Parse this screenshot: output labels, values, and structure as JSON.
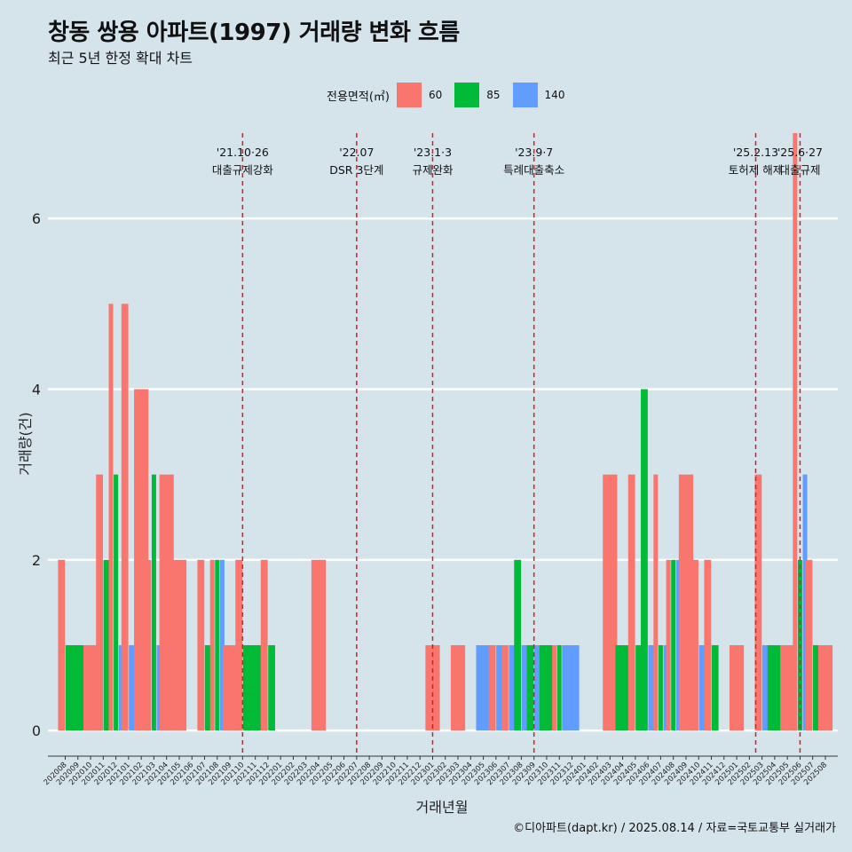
{
  "title": "창동 쌍용 아파트(1997) 거래량 변화 흐름",
  "subtitle": "최근 5년 한정 확대 차트",
  "caption": "©디아파트(dapt.kr) / 2025.08.14 / 자료=국토교통부 실거래가",
  "chart_data": {
    "type": "bar",
    "xlabel": "거래년월",
    "ylabel": "거래량(건)",
    "ylim": [
      -0.3,
      7.0
    ],
    "yticks": [
      0,
      2,
      4,
      6
    ],
    "grid": true,
    "legend": {
      "title": "전용면적(㎡)",
      "placement": "top",
      "entries": [
        {
          "label": "60",
          "color": "#f8766d"
        },
        {
          "label": "85",
          "color": "#00ba38"
        },
        {
          "label": "140",
          "color": "#619cff"
        }
      ]
    },
    "categories": [
      "202008",
      "202009",
      "202010",
      "202011",
      "202012",
      "202101",
      "202102",
      "202103",
      "202104",
      "202105",
      "202106",
      "202107",
      "202108",
      "202109",
      "202110",
      "202111",
      "202112",
      "202201",
      "202202",
      "202203",
      "202204",
      "202205",
      "202206",
      "202207",
      "202208",
      "202209",
      "202210",
      "202211",
      "202212",
      "202301",
      "202302",
      "202303",
      "202304",
      "202305",
      "202306",
      "202307",
      "202308",
      "202309",
      "202310",
      "202311",
      "202312",
      "202401",
      "202402",
      "202403",
      "202404",
      "202405",
      "202406",
      "202407",
      "202408",
      "202409",
      "202410",
      "202411",
      "202412",
      "202501",
      "202502",
      "202503",
      "202504",
      "202505",
      "202506",
      "202507",
      "202508"
    ],
    "series": [
      {
        "name": "60",
        "color": "#f8766d",
        "values": [
          2,
          0,
          1,
          3,
          5,
          5,
          4,
          2,
          3,
          2,
          0,
          2,
          2,
          1,
          2,
          0,
          2,
          0,
          0,
          0,
          2,
          0,
          0,
          0,
          0,
          0,
          0,
          0,
          0,
          1,
          0,
          1,
          0,
          0,
          1,
          1,
          0,
          0,
          0,
          1,
          0,
          0,
          0,
          3,
          0,
          3,
          0,
          3,
          2,
          3,
          2,
          2,
          0,
          1,
          0,
          3,
          0,
          1,
          7,
          2,
          1
        ]
      },
      {
        "name": "85",
        "color": "#00ba38",
        "values": [
          1,
          1,
          0,
          2,
          3,
          0,
          0,
          3,
          0,
          0,
          0,
          1,
          2,
          0,
          1,
          1,
          1,
          0,
          0,
          0,
          0,
          0,
          0,
          0,
          0,
          0,
          0,
          0,
          0,
          0,
          0,
          0,
          0,
          0,
          0,
          0,
          2,
          1,
          1,
          1,
          0,
          0,
          0,
          0,
          1,
          1,
          4,
          1,
          2,
          0,
          0,
          1,
          0,
          0,
          0,
          0,
          1,
          0,
          2,
          1,
          0
        ]
      },
      {
        "name": "140",
        "color": "#619cff",
        "values": [
          0,
          0,
          0,
          0,
          1,
          1,
          0,
          1,
          0,
          0,
          0,
          0,
          2,
          0,
          0,
          0,
          0,
          0,
          0,
          0,
          0,
          0,
          0,
          0,
          0,
          0,
          0,
          0,
          0,
          0,
          0,
          0,
          0,
          1,
          1,
          1,
          1,
          1,
          0,
          1,
          1,
          0,
          0,
          0,
          0,
          0,
          1,
          1,
          2,
          0,
          1,
          0,
          0,
          0,
          0,
          1,
          0,
          0,
          3,
          0,
          0
        ]
      }
    ],
    "events": [
      {
        "date": "'21.10·26",
        "label": "대출규제강화",
        "position": 14.0
      },
      {
        "date": "'22.07",
        "label": "DSR 3단계",
        "position": 23.0
      },
      {
        "date": "'23.1·3",
        "label": "규제완화",
        "position": 29.0
      },
      {
        "date": "'23.9·7",
        "label": "특례대출축소",
        "position": 37.0
      },
      {
        "date": "'25.2.13",
        "label": "토허제 해제",
        "position": 54.5
      },
      {
        "date": "'25.6·27",
        "label": "대출규제",
        "position": 58.0
      }
    ]
  }
}
